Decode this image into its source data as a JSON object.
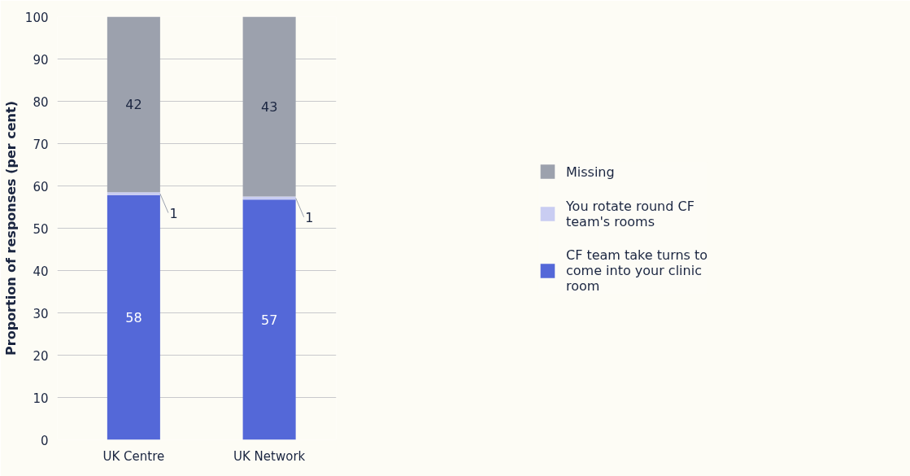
{
  "chart_data": {
    "type": "bar",
    "stacked": true,
    "ylabel": "Proportion of responses (per cent)",
    "categories": [
      "UK Centre",
      "UK Network"
    ],
    "series": [
      {
        "name": "CF team take turns to come into your clinic room",
        "color": "#5468d8",
        "values": [
          57.8,
          56.8
        ],
        "value_labels": [
          "58",
          "57"
        ]
      },
      {
        "name": "You rotate round CF team's rooms",
        "color": "#c9cdf2",
        "values": [
          0.7,
          0.7
        ],
        "value_labels": [
          "1",
          "1"
        ]
      },
      {
        "name": "Missing",
        "color": "#9ca1ad",
        "values": [
          41.5,
          42.5
        ],
        "value_labels": [
          "42",
          "43"
        ]
      }
    ],
    "ylim": [
      0,
      100
    ],
    "yticks": [
      0,
      10,
      20,
      30,
      40,
      50,
      60,
      70,
      80,
      90,
      100
    ],
    "grid": "y",
    "legend": "right"
  }
}
